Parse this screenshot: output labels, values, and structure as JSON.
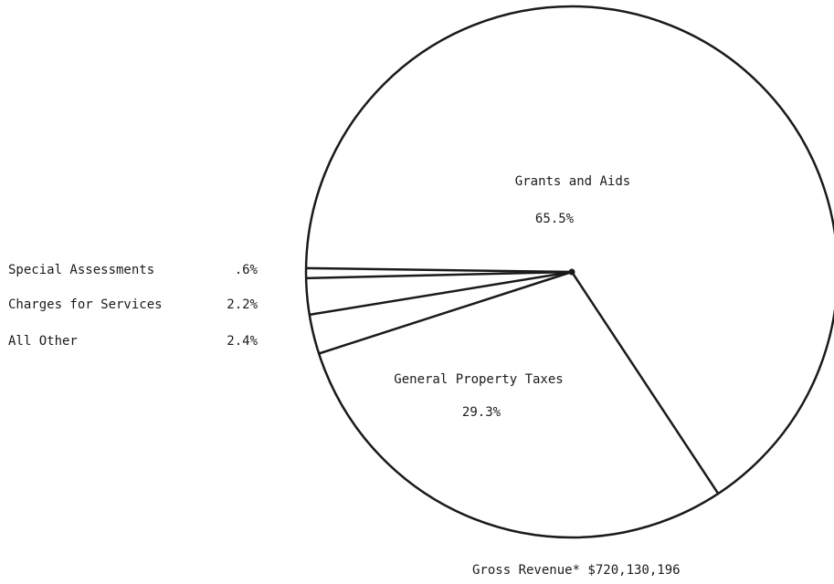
{
  "chart_data": {
    "type": "pie",
    "slices": [
      {
        "label": "Grants and Aids",
        "value": 65.5,
        "display": "65.5%"
      },
      {
        "label": "General Property Taxes",
        "value": 29.3,
        "display": "29.3%"
      },
      {
        "label": "All Other",
        "value": 2.4,
        "display": "2.4%"
      },
      {
        "label": "Charges for Services",
        "value": 2.2,
        "display": "2.2%"
      },
      {
        "label": "Special Assessments",
        "value": 0.6,
        "display": ".6%"
      }
    ],
    "footnote": "Gross Revenue* $720,130,196"
  }
}
